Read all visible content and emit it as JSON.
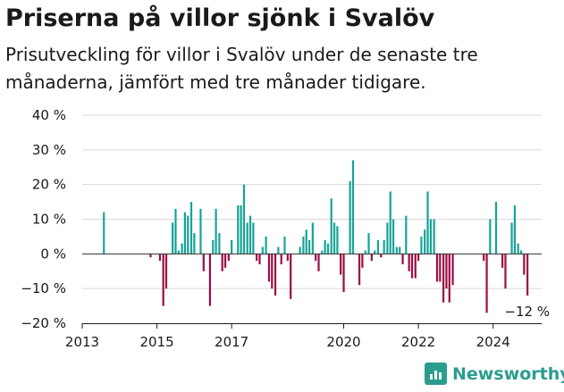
{
  "title": "Priserna på villor sjönk i Svalöv",
  "subtitle": "Prisutveckling för villor i Svalöv under de senaste tre månaderna, jämfört med tre månader tidigare.",
  "brand": {
    "name": "Newsworthy"
  },
  "colors": {
    "positive": "#17a398",
    "negative": "#9e0b45",
    "grid": "#d9d9d9",
    "axis": "#1a1a1a"
  },
  "chart_data": {
    "type": "bar",
    "title": "Priserna på villor sjönk i Svalöv",
    "xlabel": "",
    "ylabel": "",
    "ylim": [
      -20,
      40
    ],
    "y_ticks": [
      40,
      30,
      20,
      10,
      0,
      -10,
      -20
    ],
    "y_tick_labels": [
      "40 %",
      "30 %",
      "20 %",
      "10 %",
      "0 %",
      "−10 %",
      "−20 %"
    ],
    "x_ticks": [
      2013,
      2015,
      2017,
      2020,
      2022,
      2024
    ],
    "x_tick_labels": [
      "2013",
      "2015",
      "2017",
      "2020",
      "2022",
      "2024"
    ],
    "x_range": [
      2013.0,
      2025.3
    ],
    "bars": [
      {
        "date": 2013.58,
        "value": 12
      },
      {
        "date": 2014.83,
        "value": -1
      },
      {
        "date": 2015.08,
        "value": -2
      },
      {
        "date": 2015.17,
        "value": -15
      },
      {
        "date": 2015.25,
        "value": -10
      },
      {
        "date": 2015.42,
        "value": 9
      },
      {
        "date": 2015.5,
        "value": 13
      },
      {
        "date": 2015.58,
        "value": 1
      },
      {
        "date": 2015.67,
        "value": 3
      },
      {
        "date": 2015.75,
        "value": 12
      },
      {
        "date": 2015.83,
        "value": 11
      },
      {
        "date": 2015.92,
        "value": 15
      },
      {
        "date": 2016.0,
        "value": 6
      },
      {
        "date": 2016.17,
        "value": 13
      },
      {
        "date": 2016.25,
        "value": -5
      },
      {
        "date": 2016.42,
        "value": -15
      },
      {
        "date": 2016.5,
        "value": 4
      },
      {
        "date": 2016.58,
        "value": 13
      },
      {
        "date": 2016.67,
        "value": 6
      },
      {
        "date": 2016.75,
        "value": -5
      },
      {
        "date": 2016.83,
        "value": -4
      },
      {
        "date": 2016.92,
        "value": -2
      },
      {
        "date": 2017.0,
        "value": 4
      },
      {
        "date": 2017.17,
        "value": 14
      },
      {
        "date": 2017.25,
        "value": 14
      },
      {
        "date": 2017.33,
        "value": 20
      },
      {
        "date": 2017.42,
        "value": 9
      },
      {
        "date": 2017.5,
        "value": 11
      },
      {
        "date": 2017.58,
        "value": 9
      },
      {
        "date": 2017.67,
        "value": -2
      },
      {
        "date": 2017.75,
        "value": -3
      },
      {
        "date": 2017.83,
        "value": 2
      },
      {
        "date": 2017.92,
        "value": 5
      },
      {
        "date": 2018.0,
        "value": -8
      },
      {
        "date": 2018.08,
        "value": -10
      },
      {
        "date": 2018.17,
        "value": -12
      },
      {
        "date": 2018.25,
        "value": 2
      },
      {
        "date": 2018.33,
        "value": -3
      },
      {
        "date": 2018.42,
        "value": 5
      },
      {
        "date": 2018.5,
        "value": -2
      },
      {
        "date": 2018.58,
        "value": -13
      },
      {
        "date": 2018.83,
        "value": 2
      },
      {
        "date": 2018.92,
        "value": 5
      },
      {
        "date": 2019.0,
        "value": 7
      },
      {
        "date": 2019.08,
        "value": 4
      },
      {
        "date": 2019.17,
        "value": 9
      },
      {
        "date": 2019.25,
        "value": -2
      },
      {
        "date": 2019.33,
        "value": -5
      },
      {
        "date": 2019.42,
        "value": 1
      },
      {
        "date": 2019.5,
        "value": 4
      },
      {
        "date": 2019.58,
        "value": 3
      },
      {
        "date": 2019.67,
        "value": 16
      },
      {
        "date": 2019.75,
        "value": 9
      },
      {
        "date": 2019.83,
        "value": 8
      },
      {
        "date": 2019.92,
        "value": -6
      },
      {
        "date": 2020.0,
        "value": -11
      },
      {
        "date": 2020.17,
        "value": 21
      },
      {
        "date": 2020.25,
        "value": 27
      },
      {
        "date": 2020.42,
        "value": -9
      },
      {
        "date": 2020.5,
        "value": -4
      },
      {
        "date": 2020.58,
        "value": 1
      },
      {
        "date": 2020.67,
        "value": 6
      },
      {
        "date": 2020.75,
        "value": -2
      },
      {
        "date": 2020.83,
        "value": 1
      },
      {
        "date": 2020.92,
        "value": 4
      },
      {
        "date": 2021.0,
        "value": -1
      },
      {
        "date": 2021.08,
        "value": 4
      },
      {
        "date": 2021.17,
        "value": 9
      },
      {
        "date": 2021.25,
        "value": 18
      },
      {
        "date": 2021.33,
        "value": 10
      },
      {
        "date": 2021.42,
        "value": 2
      },
      {
        "date": 2021.5,
        "value": 2
      },
      {
        "date": 2021.58,
        "value": -3
      },
      {
        "date": 2021.67,
        "value": 11
      },
      {
        "date": 2021.75,
        "value": -5
      },
      {
        "date": 2021.83,
        "value": -7
      },
      {
        "date": 2021.92,
        "value": -7
      },
      {
        "date": 2022.0,
        "value": -2
      },
      {
        "date": 2022.08,
        "value": 5
      },
      {
        "date": 2022.17,
        "value": 7
      },
      {
        "date": 2022.25,
        "value": 18
      },
      {
        "date": 2022.33,
        "value": 10
      },
      {
        "date": 2022.42,
        "value": 10
      },
      {
        "date": 2022.5,
        "value": -8
      },
      {
        "date": 2022.58,
        "value": -8
      },
      {
        "date": 2022.67,
        "value": -14
      },
      {
        "date": 2022.75,
        "value": -10
      },
      {
        "date": 2022.83,
        "value": -14
      },
      {
        "date": 2022.92,
        "value": -9
      },
      {
        "date": 2023.75,
        "value": -2
      },
      {
        "date": 2023.83,
        "value": -17
      },
      {
        "date": 2023.92,
        "value": 10
      },
      {
        "date": 2024.08,
        "value": 15
      },
      {
        "date": 2024.25,
        "value": -4
      },
      {
        "date": 2024.33,
        "value": -10
      },
      {
        "date": 2024.5,
        "value": 9
      },
      {
        "date": 2024.58,
        "value": 14
      },
      {
        "date": 2024.67,
        "value": 3
      },
      {
        "date": 2024.75,
        "value": 1
      },
      {
        "date": 2024.83,
        "value": -6
      },
      {
        "date": 2024.92,
        "value": -12
      }
    ],
    "annotation": {
      "date": 2024.92,
      "value": -12,
      "text": "−12 %"
    }
  }
}
